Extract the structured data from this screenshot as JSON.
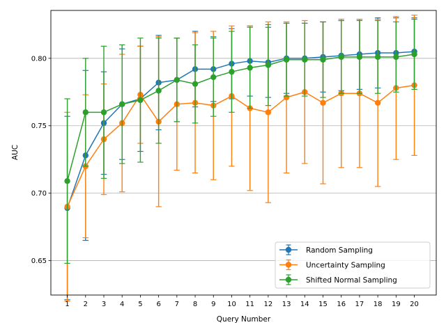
{
  "chart_data": {
    "type": "line",
    "title": "",
    "xlabel": "Query Number",
    "ylabel": "AUC",
    "x": [
      1,
      2,
      3,
      4,
      5,
      6,
      7,
      8,
      9,
      10,
      11,
      12,
      13,
      14,
      15,
      16,
      17,
      18,
      19,
      20
    ],
    "xlim": [
      0.1,
      21.2
    ],
    "ylim": [
      0.6245,
      0.8355
    ],
    "yticks": [
      0.65,
      0.7,
      0.75,
      0.8
    ],
    "ytick_labels": [
      "0.65",
      "0.70",
      "0.75",
      "0.80"
    ],
    "grid": "y",
    "legend_position": "lower-right",
    "series": [
      {
        "name": "Random Sampling",
        "color": "#1f77b4",
        "values": [
          0.689,
          0.728,
          0.752,
          0.766,
          0.77,
          0.782,
          0.784,
          0.792,
          0.792,
          0.796,
          0.798,
          0.797,
          0.8,
          0.8,
          0.801,
          0.802,
          0.803,
          0.804,
          0.804,
          0.805
        ],
        "err": [
          0.068,
          0.063,
          0.038,
          0.041,
          0.039,
          0.035,
          0.031,
          0.028,
          0.024,
          0.026,
          0.026,
          0.026,
          0.026,
          0.026,
          0.026,
          0.026,
          0.026,
          0.026,
          0.026,
          0.025
        ]
      },
      {
        "name": "Uncertainty Sampling",
        "color": "#ff7f0e",
        "values": [
          0.69,
          0.72,
          0.74,
          0.752,
          0.773,
          0.753,
          0.766,
          0.767,
          0.765,
          0.772,
          0.763,
          0.76,
          0.771,
          0.775,
          0.767,
          0.774,
          0.774,
          0.767,
          0.778,
          0.78
        ],
        "err": [
          0.07,
          0.053,
          0.041,
          0.051,
          0.036,
          0.063,
          0.049,
          0.052,
          0.055,
          0.052,
          0.061,
          0.067,
          0.056,
          0.053,
          0.06,
          0.055,
          0.055,
          0.062,
          0.053,
          0.052
        ]
      },
      {
        "name": "Shifted Normal Sampling",
        "color": "#2ca02c",
        "values": [
          0.709,
          0.76,
          0.76,
          0.766,
          0.769,
          0.776,
          0.784,
          0.781,
          0.786,
          0.79,
          0.793,
          0.795,
          0.799,
          0.799,
          0.799,
          0.801,
          0.801,
          0.801,
          0.801,
          0.803
        ],
        "err": [
          0.061,
          0.04,
          0.049,
          0.044,
          0.046,
          0.039,
          0.031,
          0.029,
          0.029,
          0.03,
          0.03,
          0.03,
          0.027,
          0.027,
          0.028,
          0.027,
          0.027,
          0.027,
          0.026,
          0.026
        ]
      }
    ]
  }
}
